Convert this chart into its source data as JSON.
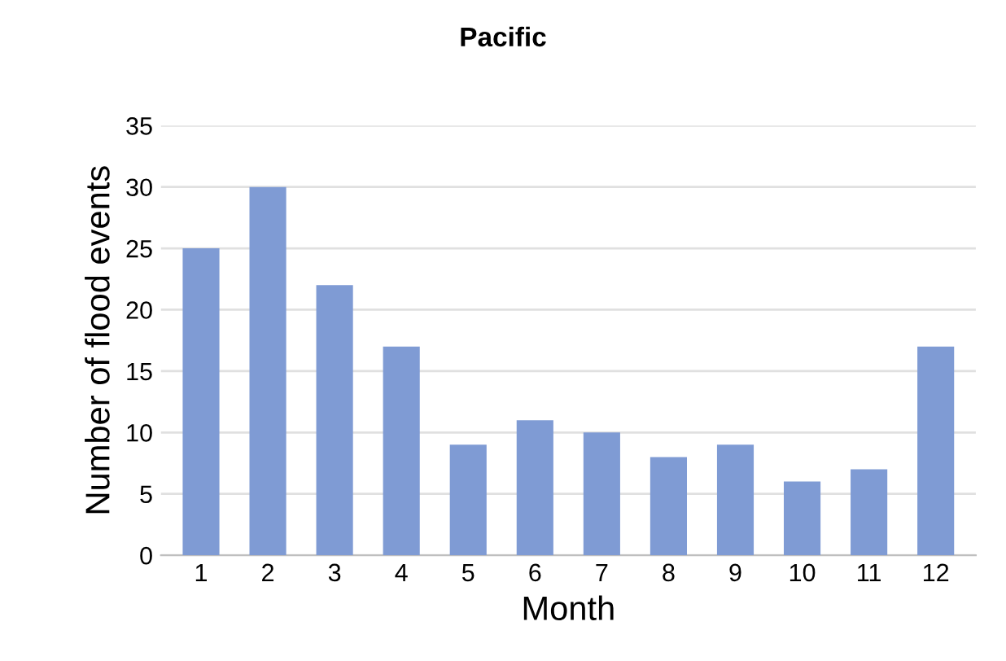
{
  "chart_data": {
    "type": "bar",
    "title": "Pacific",
    "xlabel": "Month",
    "ylabel": "Number of flood events",
    "categories": [
      "1",
      "2",
      "3",
      "4",
      "5",
      "6",
      "7",
      "8",
      "9",
      "10",
      "11",
      "12"
    ],
    "values": [
      25,
      30,
      22,
      17,
      9,
      11,
      10,
      8,
      9,
      6,
      7,
      17
    ],
    "color": "#7f9bd4",
    "ylim": [
      0,
      35
    ],
    "yticks": [
      0,
      5,
      10,
      15,
      20,
      25,
      30,
      35
    ],
    "grid": "y"
  }
}
